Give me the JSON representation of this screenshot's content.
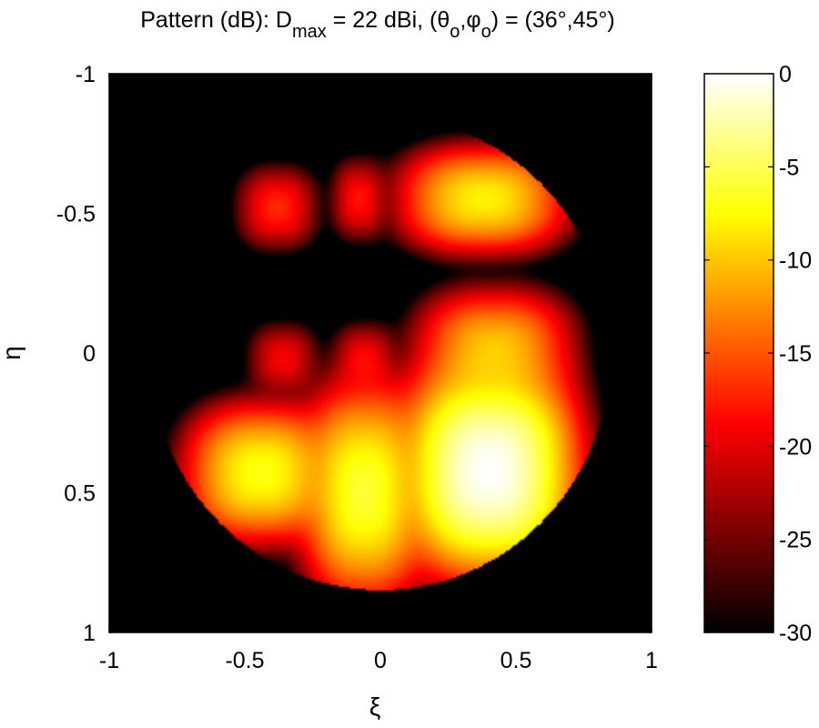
{
  "chart_data": {
    "type": "heatmap",
    "title_parts": {
      "prefix": "Pattern (dB): D",
      "sub1": "max",
      "mid1": " = 22 dBi, (θ",
      "sub2": "o",
      "mid2": ",φ",
      "sub3": "o",
      "suffix": ") = (36°,45°)"
    },
    "xlabel": "ξ",
    "ylabel": "η",
    "xlim": [
      -1,
      1
    ],
    "ylim": [
      -1,
      1
    ],
    "y_axis_reversed": true,
    "xticks": [
      -1,
      -0.5,
      0,
      0.5,
      1
    ],
    "yticks": [
      -1,
      -0.5,
      0,
      0.5,
      1
    ],
    "xtick_labels": [
      "-1",
      "-0.5",
      "0",
      "0.5",
      "1"
    ],
    "ytick_labels": [
      "-1",
      "-0.5",
      "0",
      "0.5",
      "1"
    ],
    "colorbar": {
      "range": [
        -30,
        0
      ],
      "ticks": [
        0,
        -5,
        -10,
        -15,
        -20,
        -25,
        -30
      ],
      "tick_labels": [
        "0",
        "-5",
        "-10",
        "-15",
        "-20",
        "-25",
        "-30"
      ],
      "colormap": "hot"
    },
    "grid": false,
    "lobes": [
      {
        "xi": 0.4,
        "eta": 0.42,
        "sx": 0.17,
        "sy": 0.2,
        "peak_db": 0,
        "sharp": 2.5
      },
      {
        "xi": -0.44,
        "eta": 0.43,
        "sx": 0.16,
        "sy": 0.14,
        "peak_db": -7,
        "sharp": 2.5
      },
      {
        "xi": -0.06,
        "eta": 0.5,
        "sx": 0.13,
        "sy": 0.22,
        "peak_db": -6,
        "sharp": 2.5
      },
      {
        "xi": 0.38,
        "eta": -0.55,
        "sx": 0.18,
        "sy": 0.11,
        "peak_db": -8,
        "sharp": 2.5
      },
      {
        "xi": 0.42,
        "eta": -0.01,
        "sx": 0.17,
        "sy": 0.13,
        "peak_db": -10,
        "sharp": 2.5
      },
      {
        "xi": -0.38,
        "eta": -0.52,
        "sx": 0.1,
        "sy": 0.1,
        "peak_db": -17,
        "sharp": 2.5
      },
      {
        "xi": -0.08,
        "eta": -0.55,
        "sx": 0.07,
        "sy": 0.1,
        "peak_db": -18,
        "sharp": 2.5
      },
      {
        "xi": -0.36,
        "eta": 0.02,
        "sx": 0.09,
        "sy": 0.09,
        "peak_db": -19,
        "sharp": 2.5
      },
      {
        "xi": -0.06,
        "eta": 0.02,
        "sx": 0.08,
        "sy": 0.09,
        "peak_db": -19,
        "sharp": 2.5
      }
    ]
  }
}
